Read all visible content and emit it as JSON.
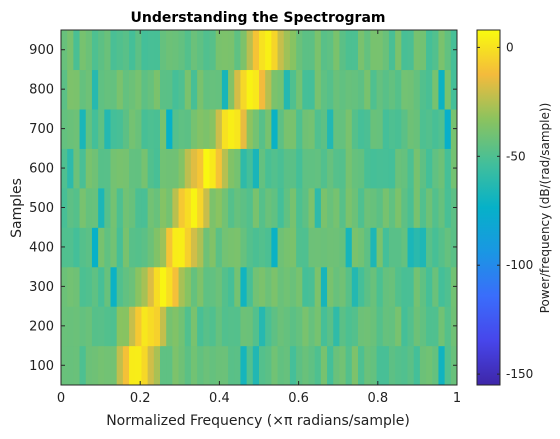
{
  "chart_data": {
    "type": "heatmap",
    "title": "Understanding the Spectrogram",
    "xlabel": "Normalized Frequency (×π radians/sample)",
    "ylabel": "Samples",
    "colorbar_label": "Power/frequency (dB/(rad/sample))",
    "xlim": [
      0,
      1
    ],
    "ylim": [
      50,
      950
    ],
    "clim": [
      -155,
      8
    ],
    "x_ticks": [
      0,
      0.2,
      0.4,
      0.6,
      0.8,
      1
    ],
    "x_tick_labels": [
      "0",
      "0.2",
      "0.4",
      "0.6",
      "0.8",
      "1"
    ],
    "y_ticks": [
      100,
      200,
      300,
      400,
      500,
      600,
      700,
      800,
      900
    ],
    "y_tick_labels": [
      "100",
      "200",
      "300",
      "400",
      "500",
      "600",
      "700",
      "800",
      "900"
    ],
    "colorbar_ticks": [
      0,
      -50,
      -100,
      -150
    ],
    "colorbar_tick_labels": [
      "0",
      "-50",
      "-100",
      "-150"
    ],
    "colormap": "parula",
    "time_bins": [
      100,
      200,
      300,
      400,
      500,
      600,
      700,
      800,
      900
    ],
    "peak_frequency": [
      0.19,
      0.22,
      0.26,
      0.3,
      0.33,
      0.37,
      0.43,
      0.48,
      0.52
    ],
    "peak_power_db": 5,
    "background_power_db": -45
  }
}
